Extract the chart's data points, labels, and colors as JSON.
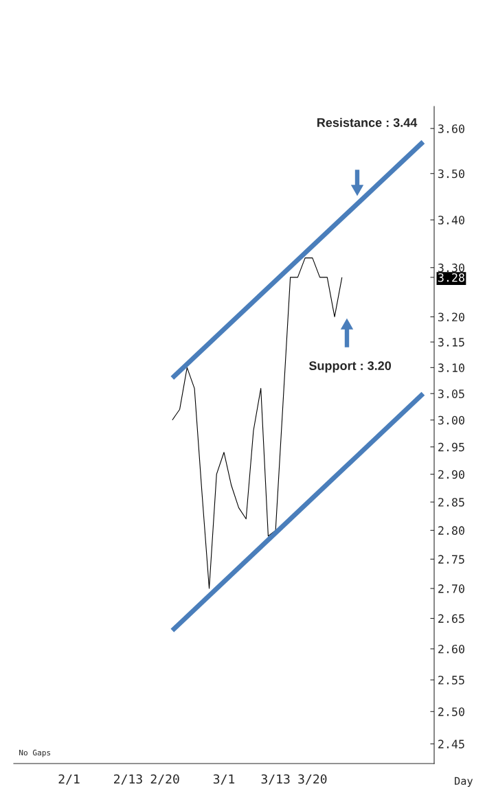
{
  "chart_data": {
    "type": "line",
    "xlabel": "Day",
    "log": "y",
    "ylim": [
      2.42,
      3.65
    ],
    "yticks": [
      {
        "value": 3.6,
        "label": "3.60"
      },
      {
        "value": 3.5,
        "label": "3.50"
      },
      {
        "value": 3.4,
        "label": "3.40"
      },
      {
        "value": 3.3,
        "label": "3.30"
      },
      {
        "value": 3.28,
        "label": "3.28"
      },
      {
        "value": 3.2,
        "label": "3.20"
      },
      3.15,
      {
        "value": 3.1,
        "label": "3.10"
      },
      3.05,
      {
        "value": 3.0,
        "label": "3.00"
      },
      2.95,
      {
        "value": 2.9,
        "label": "2.90"
      },
      2.85,
      {
        "value": 2.8,
        "label": "2.80"
      },
      2.75,
      {
        "value": 2.7,
        "label": "2.70"
      },
      2.65,
      {
        "value": 2.6,
        "label": "2.60"
      },
      2.55,
      {
        "value": 2.5,
        "label": "2.50"
      },
      2.45
    ],
    "categories": [
      null,
      null,
      null,
      null,
      null,
      null,
      null,
      "2/1",
      null,
      null,
      null,
      null,
      null,
      null,
      null,
      "2/13",
      null,
      null,
      null,
      null,
      "2/20",
      null,
      null,
      null,
      null,
      null,
      null,
      null,
      "3/1",
      null,
      null,
      null,
      null,
      null,
      null,
      "3/13",
      null,
      null,
      null,
      null,
      "3/20",
      null,
      null,
      null,
      null,
      null,
      null,
      null,
      null,
      null,
      null,
      null,
      null,
      null,
      null,
      null,
      null
    ],
    "series": [
      {
        "color": "#000000",
        "values": [
          null,
          null,
          null,
          null,
          null,
          null,
          null,
          null,
          null,
          null,
          null,
          null,
          null,
          null,
          null,
          null,
          null,
          null,
          null,
          null,
          null,
          3.0,
          3.02,
          3.1,
          3.06,
          2.87,
          2.7,
          2.9,
          2.94,
          2.88,
          2.84,
          2.82,
          2.98,
          3.06,
          2.79,
          2.8,
          3.03,
          3.28,
          3.28,
          3.32,
          3.32,
          3.28,
          3.28,
          3.2,
          3.28,
          null,
          null,
          null,
          null,
          null,
          null,
          null,
          null,
          null,
          null,
          null,
          null
        ]
      },
      {
        "color": "#4a7ebb",
        "values": [
          null,
          null,
          null,
          null,
          null,
          null,
          null,
          null,
          null,
          null,
          null,
          null,
          null,
          null,
          null,
          null,
          null,
          null,
          null,
          null,
          null,
          3.08,
          null,
          null,
          null,
          null,
          null,
          null,
          null,
          null,
          null,
          null,
          null,
          null,
          null,
          null,
          null,
          null,
          null,
          null,
          null,
          null,
          null,
          null,
          null,
          null,
          null,
          null,
          null,
          null,
          null,
          null,
          null,
          null,
          null,
          3.57,
          null
        ]
      },
      {
        "color": "#4a7ebb",
        "values": [
          null,
          null,
          null,
          null,
          null,
          null,
          null,
          null,
          null,
          null,
          null,
          null,
          null,
          null,
          null,
          null,
          null,
          null,
          null,
          null,
          null,
          2.63,
          null,
          null,
          null,
          null,
          null,
          null,
          null,
          null,
          null,
          null,
          null,
          null,
          null,
          null,
          null,
          null,
          null,
          null,
          null,
          null,
          null,
          null,
          null,
          null,
          null,
          null,
          null,
          null,
          null,
          null,
          null,
          null,
          null,
          3.05,
          null
        ]
      }
    ],
    "annotations": [
      "Resistance : 3.44",
      "Support : 3.20",
      "No Gaps"
    ],
    "grid": false,
    "legend": false
  }
}
